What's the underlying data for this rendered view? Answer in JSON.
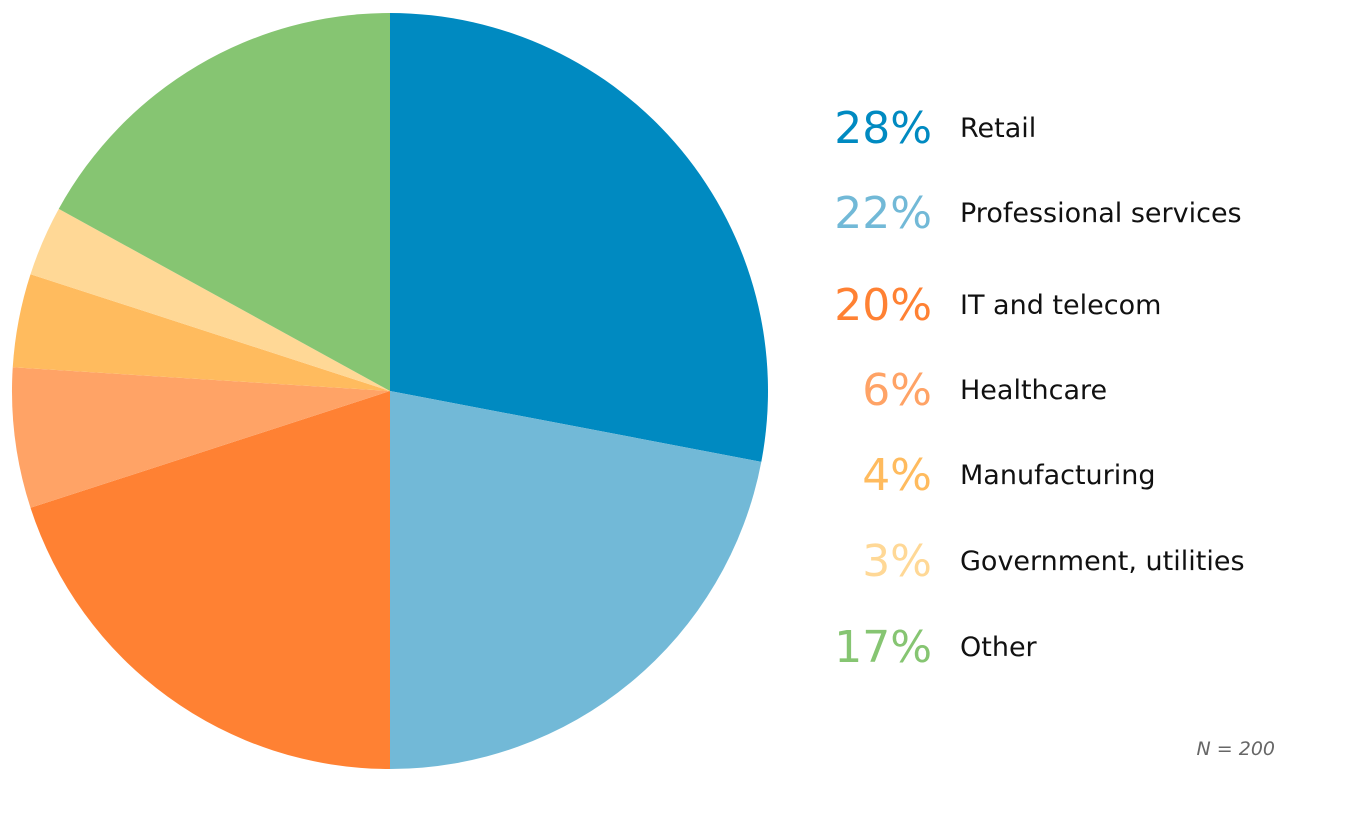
{
  "chart_data": {
    "type": "pie",
    "slices": [
      {
        "label": "Retail",
        "percent_label": "28%",
        "value": 28,
        "color": "#008AC1"
      },
      {
        "label": "Professional services",
        "percent_label": "22%",
        "value": 22,
        "color": "#72B9D7"
      },
      {
        "label": "IT and telecom",
        "percent_label": "20%",
        "value": 20,
        "color": "#FF8133"
      },
      {
        "label": "Healthcare",
        "percent_label": "6%",
        "value": 6,
        "color": "#FFA366"
      },
      {
        "label": "Manufacturing",
        "percent_label": "4%",
        "value": 4,
        "color": "#FFBB5E"
      },
      {
        "label": "Government, utilities",
        "percent_label": "3%",
        "value": 3,
        "color": "#FFD896"
      },
      {
        "label": "Other",
        "percent_label": "17%",
        "value": 17,
        "color": "#86C572"
      }
    ],
    "start": "12 o'clock",
    "direction": "clockwise",
    "legend_position": "right",
    "note": "N = 200"
  }
}
